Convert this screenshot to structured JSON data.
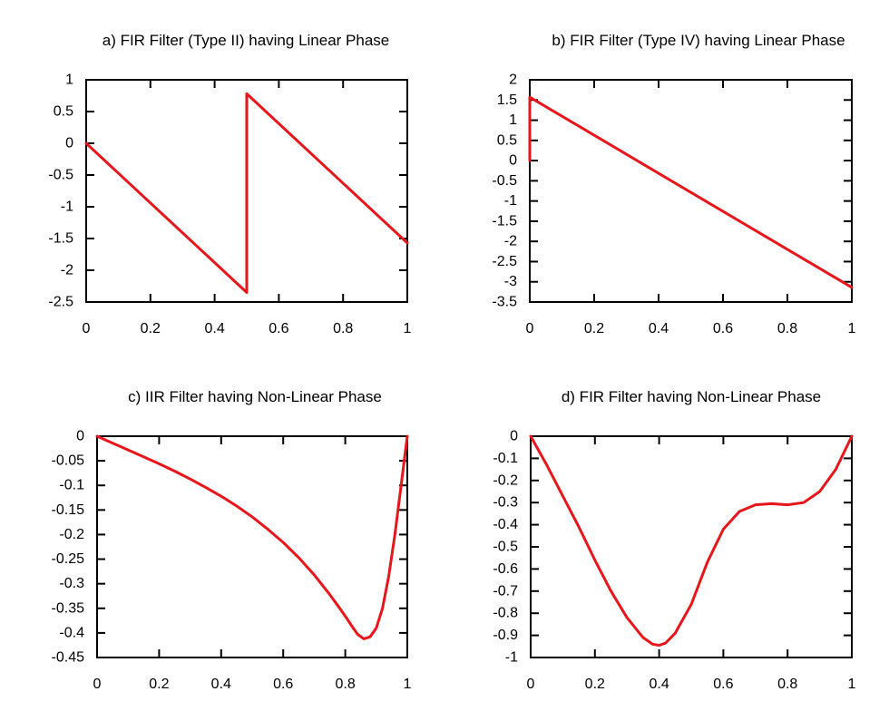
{
  "line_color": "#e8161b",
  "chart_data": [
    {
      "type": "line",
      "title": "a) FIR Filter (Type II) having Linear Phase",
      "xlabel": "",
      "ylabel": "",
      "xlim": [
        0,
        1
      ],
      "ylim": [
        -2.5,
        1
      ],
      "xticks": [
        0,
        0.2,
        0.4,
        0.6,
        0.8,
        1
      ],
      "xtick_labels": [
        "0",
        "0.2",
        "0.4",
        "0.6",
        "0.8",
        "1"
      ],
      "yticks": [
        1,
        0.5,
        0,
        -0.5,
        -1,
        -1.5,
        -2,
        -2.5
      ],
      "ytick_labels": [
        "1",
        "0.5",
        "0",
        "-0.5",
        "-1",
        "-1.5",
        "-2",
        "-2.5"
      ],
      "grid": false,
      "legend": "none",
      "series": [
        {
          "x": [
            0,
            0.5,
            0.5,
            1
          ],
          "y": [
            0,
            -2.35,
            0.78,
            -1.57
          ]
        }
      ]
    },
    {
      "type": "line",
      "title": "b) FIR Filter (Type IV) having Linear Phase",
      "xlabel": "",
      "ylabel": "",
      "xlim": [
        0,
        1
      ],
      "ylim": [
        -3.5,
        2
      ],
      "xticks": [
        0,
        0.2,
        0.4,
        0.6,
        0.8,
        1
      ],
      "xtick_labels": [
        "0",
        "0.2",
        "0.4",
        "0.6",
        "0.8",
        "1"
      ],
      "yticks": [
        2,
        1.5,
        1,
        0.5,
        0,
        -0.5,
        -1,
        -1.5,
        -2,
        -2.5,
        -3,
        -3.5
      ],
      "ytick_labels": [
        "2",
        "1.5",
        "1",
        "0.5",
        "0",
        "-0.5",
        "-1",
        "-1.5",
        "-2",
        "-2.5",
        "-3",
        "-3.5"
      ],
      "grid": false,
      "legend": "none",
      "series": [
        {
          "x": [
            0,
            0,
            1
          ],
          "y": [
            0,
            1.57,
            -3.14
          ]
        }
      ]
    },
    {
      "type": "line",
      "title": "c) IIR Filter having Non-Linear Phase",
      "xlabel": "",
      "ylabel": "",
      "xlim": [
        0,
        1
      ],
      "ylim": [
        -0.45,
        0
      ],
      "xticks": [
        0,
        0.2,
        0.4,
        0.6,
        0.8,
        1
      ],
      "xtick_labels": [
        "0",
        "0.2",
        "0.4",
        "0.6",
        "0.8",
        "1"
      ],
      "yticks": [
        0,
        -0.05,
        -0.1,
        -0.15,
        -0.2,
        -0.25,
        -0.3,
        -0.35,
        -0.4,
        -0.45
      ],
      "ytick_labels": [
        "0",
        "-0.05",
        "-0.1",
        "-0.15",
        "-0.2",
        "-0.25",
        "-0.3",
        "-0.35",
        "-0.4",
        "-0.45"
      ],
      "grid": false,
      "legend": "none",
      "series": [
        {
          "x": [
            0,
            0.05,
            0.1,
            0.15,
            0.2,
            0.25,
            0.3,
            0.35,
            0.4,
            0.45,
            0.5,
            0.55,
            0.6,
            0.65,
            0.7,
            0.75,
            0.78,
            0.8,
            0.82,
            0.84,
            0.86,
            0.88,
            0.9,
            0.92,
            0.94,
            0.96,
            0.98,
            1
          ],
          "y": [
            0,
            -0.014,
            -0.028,
            -0.042,
            -0.056,
            -0.071,
            -0.087,
            -0.104,
            -0.122,
            -0.142,
            -0.164,
            -0.189,
            -0.216,
            -0.247,
            -0.282,
            -0.322,
            -0.348,
            -0.366,
            -0.385,
            -0.403,
            -0.412,
            -0.408,
            -0.39,
            -0.35,
            -0.285,
            -0.2,
            -0.1,
            0
          ]
        }
      ]
    },
    {
      "type": "line",
      "title": "d) FIR Filter having Non-Linear Phase",
      "xlabel": "",
      "ylabel": "",
      "xlim": [
        0,
        1
      ],
      "ylim": [
        -1,
        0
      ],
      "xticks": [
        0,
        0.2,
        0.4,
        0.6,
        0.8,
        1
      ],
      "xtick_labels": [
        "0",
        "0.2",
        "0.4",
        "0.6",
        "0.8",
        "1"
      ],
      "yticks": [
        0,
        -0.1,
        -0.2,
        -0.3,
        -0.4,
        -0.5,
        -0.6,
        -0.7,
        -0.8,
        -0.9,
        -1
      ],
      "ytick_labels": [
        "0",
        "-0.1",
        "-0.2",
        "-0.3",
        "-0.4",
        "-0.5",
        "-0.6",
        "-0.7",
        "-0.8",
        "-0.9",
        "-1"
      ],
      "grid": false,
      "legend": "none",
      "series": [
        {
          "x": [
            0,
            0.05,
            0.1,
            0.15,
            0.2,
            0.25,
            0.3,
            0.35,
            0.38,
            0.4,
            0.42,
            0.45,
            0.5,
            0.55,
            0.6,
            0.65,
            0.7,
            0.75,
            0.8,
            0.85,
            0.9,
            0.95,
            1
          ],
          "y": [
            0,
            -0.13,
            -0.27,
            -0.41,
            -0.56,
            -0.7,
            -0.82,
            -0.91,
            -0.94,
            -0.945,
            -0.935,
            -0.89,
            -0.76,
            -0.57,
            -0.42,
            -0.34,
            -0.31,
            -0.305,
            -0.31,
            -0.3,
            -0.25,
            -0.15,
            0
          ]
        }
      ]
    }
  ]
}
